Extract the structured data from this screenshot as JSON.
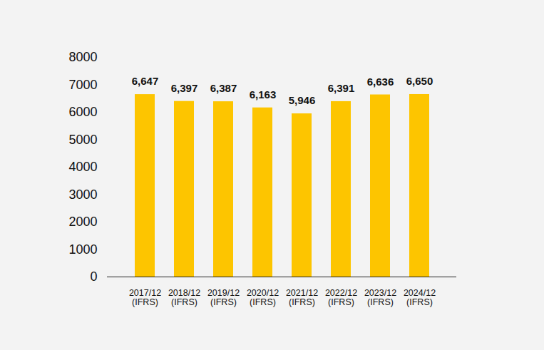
{
  "chart_data": {
    "type": "bar",
    "categories": [
      "2017/12 (IFRS)",
      "2018/12 (IFRS)",
      "2019/12 (IFRS)",
      "2020/12 (IFRS)",
      "2021/12 (IFRS)",
      "2022/12 (IFRS)",
      "2023/12 (IFRS)",
      "2024/12 (IFRS)"
    ],
    "values": [
      6647,
      6397,
      6387,
      6163,
      5946,
      6391,
      6636,
      6650
    ],
    "value_labels": [
      "6,647",
      "6,397",
      "6,387",
      "6,163",
      "5,946",
      "6,391",
      "6,636",
      "6,650"
    ],
    "color": "#fdc500",
    "ylim": [
      0,
      8000
    ],
    "yticks": [
      0,
      1000,
      2000,
      3000,
      4000,
      5000,
      6000,
      7000,
      8000
    ],
    "grid": false,
    "data_labels": true
  }
}
